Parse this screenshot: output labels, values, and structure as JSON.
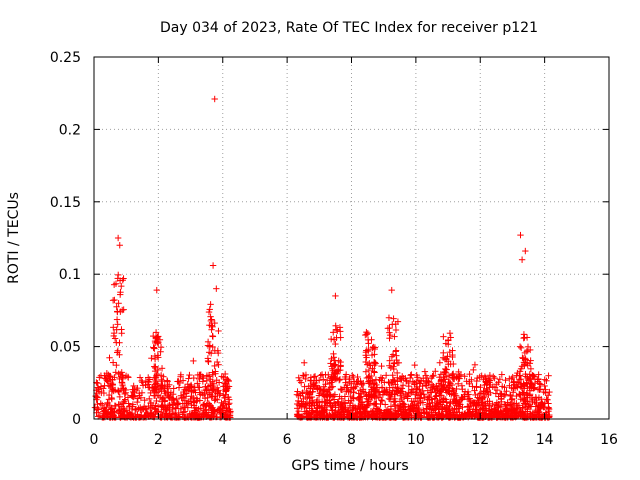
{
  "chart_data": {
    "type": "scatter",
    "title": "Day 034 of 2023, Rate Of TEC Index for receiver p121",
    "xlabel": "GPS time / hours",
    "ylabel": "ROTI / TECUs",
    "xlim": [
      0,
      16
    ],
    "ylim": [
      0,
      0.25
    ],
    "grid": true,
    "marker": "+",
    "color": "#ff0000",
    "x_ticks": [
      "0",
      "2",
      "4",
      "6",
      "8",
      "10",
      "12",
      "14",
      "16"
    ],
    "y_ticks": [
      "0",
      "0.05",
      "0.1",
      "0.15",
      "0.2",
      "0.25"
    ],
    "data_gap_hours": [
      4.25,
      6.3
    ],
    "notable_points": [
      {
        "x": 0.75,
        "y": 0.125
      },
      {
        "x": 0.8,
        "y": 0.12
      },
      {
        "x": 1.95,
        "y": 0.089
      },
      {
        "x": 3.75,
        "y": 0.221
      },
      {
        "x": 3.7,
        "y": 0.106
      },
      {
        "x": 3.8,
        "y": 0.09
      },
      {
        "x": 7.5,
        "y": 0.085
      },
      {
        "x": 9.25,
        "y": 0.089
      },
      {
        "x": 13.25,
        "y": 0.127
      },
      {
        "x": 13.4,
        "y": 0.116
      },
      {
        "x": 13.3,
        "y": 0.11
      }
    ],
    "clusters": [
      {
        "x": 0.75,
        "y": 0.1
      },
      {
        "x": 1.95,
        "y": 0.06
      },
      {
        "x": 3.7,
        "y": 0.08
      },
      {
        "x": 7.5,
        "y": 0.065
      },
      {
        "x": 8.6,
        "y": 0.06
      },
      {
        "x": 9.3,
        "y": 0.07
      },
      {
        "x": 11.0,
        "y": 0.06
      },
      {
        "x": 13.4,
        "y": 0.06
      }
    ]
  }
}
